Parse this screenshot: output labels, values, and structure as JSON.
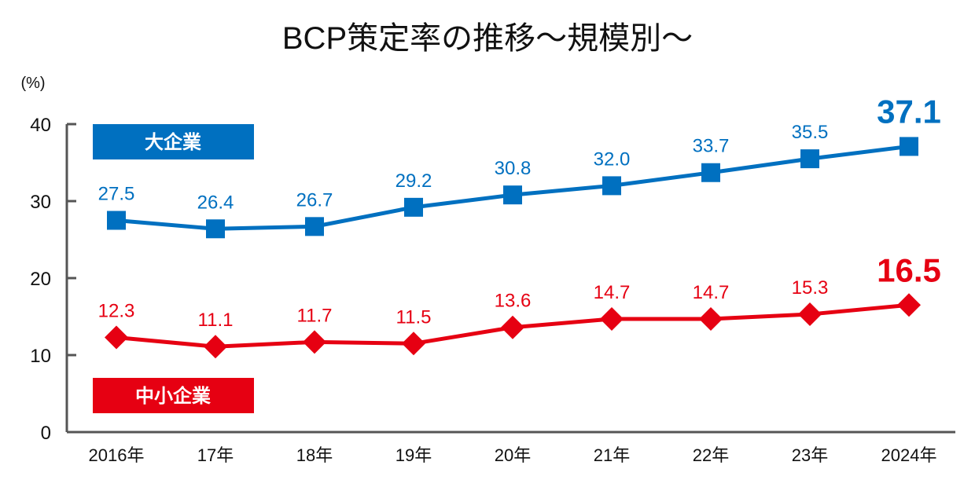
{
  "chart_data": {
    "type": "line",
    "title": "BCP策定率の推移～規模別～",
    "ylabel": "(%)",
    "xlabel": "",
    "ylim": [
      0,
      40
    ],
    "yticks": [
      "0",
      "10",
      "20",
      "30",
      "40"
    ],
    "categories": [
      "2016年",
      "17年",
      "18年",
      "19年",
      "20年",
      "21年",
      "22年",
      "23年",
      "2024年"
    ],
    "grid": false,
    "series": [
      {
        "name": "大企業",
        "color": "#0070c0",
        "marker": "square",
        "values": [
          27.5,
          26.4,
          26.7,
          29.2,
          30.8,
          32.0,
          33.7,
          35.5,
          37.1
        ],
        "labels": [
          "27.5",
          "26.4",
          "26.7",
          "29.2",
          "30.8",
          "32.0",
          "33.7",
          "35.5",
          "37.1"
        ]
      },
      {
        "name": "中小企業",
        "color": "#e60012",
        "marker": "diamond",
        "values": [
          12.3,
          11.1,
          11.7,
          11.5,
          13.6,
          14.7,
          14.7,
          15.3,
          16.5
        ],
        "labels": [
          "12.3",
          "11.1",
          "11.7",
          "11.5",
          "13.6",
          "14.7",
          "14.7",
          "15.3",
          "16.5"
        ]
      }
    ]
  }
}
